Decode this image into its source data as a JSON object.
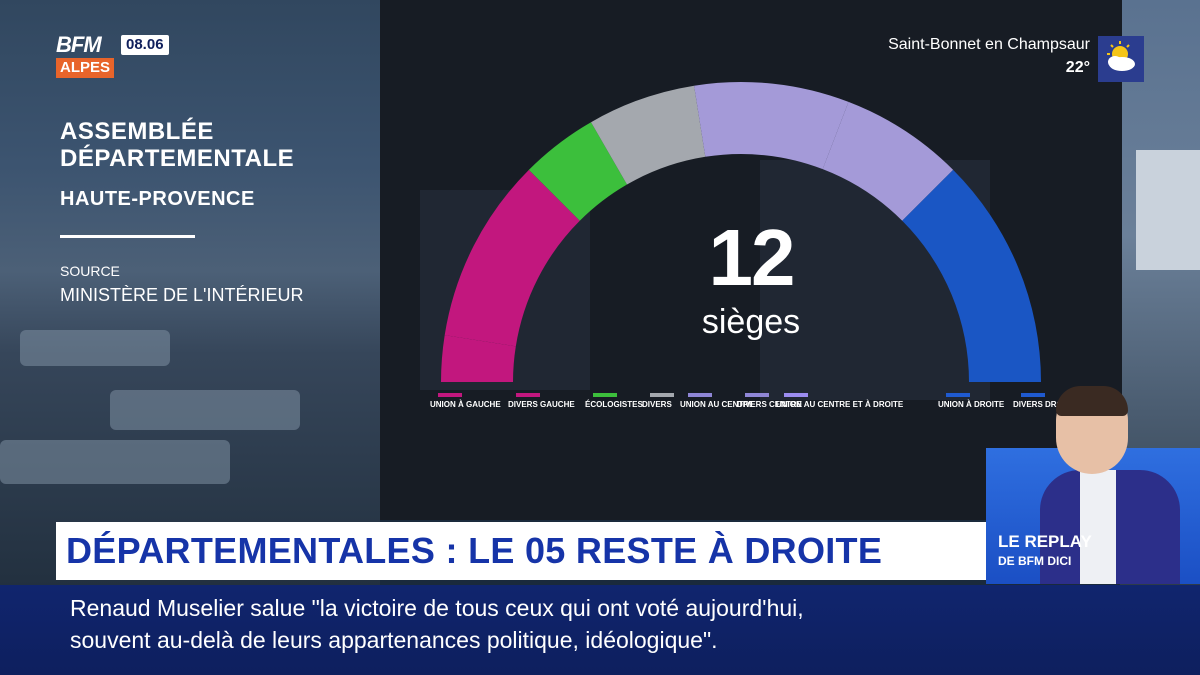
{
  "channel": {
    "logo_top": "BFM",
    "logo_bottom": "ALPES",
    "time": "08.06"
  },
  "weather": {
    "city": "Saint-Bonnet en Champsaur",
    "temperature": "22°",
    "icon": "sun-cloud-icon"
  },
  "info_panel": {
    "title_line1": "ASSEMBLÉE",
    "title_line2": "DÉPARTEMENTALE",
    "subtitle": "HAUTE-PROVENCE",
    "source_label": "SOURCE",
    "source_value": "MINISTÈRE DE L'INTÉRIEUR"
  },
  "chart_data": {
    "type": "pie",
    "variant": "parliament-semicircle",
    "center_value": "12",
    "center_label": "sièges",
    "categories": [
      "UNION À GAUCHE",
      "DIVERS GAUCHE",
      "ÉCOLOGISTES",
      "DIVERS",
      "UNION AU CENTRE",
      "DIVERS CENTRE",
      "UNION AU CENTRE ET À DROITE",
      "UNION À DROITE",
      "DIVERS DROITE"
    ],
    "values": [
      0.6,
      2.4,
      1.0,
      1.4,
      2.0,
      1.6,
      0,
      3.0,
      0
    ],
    "colors": [
      "#c2177e",
      "#c2177e",
      "#3cbf3c",
      "#a4a8ae",
      "#a49ad8",
      "#a49ad8",
      "#9b8cf0",
      "#1a56c4",
      "#1a56c4"
    ],
    "legend_colors": [
      "#c2177e",
      "#c2177e",
      "#3cbf3c",
      "#a4a8ae",
      "#8f86d6",
      "#8f86d6",
      "#9b8cf0",
      "#1f5ad0",
      "#1f5ad0"
    ]
  },
  "legend_items": [
    {
      "label": "UNION À GAUCHE"
    },
    {
      "label": "DIVERS GAUCHE"
    },
    {
      "label": "ÉCOLOGISTES"
    },
    {
      "label": "DIVERS"
    },
    {
      "label": "UNION AU CENTRE"
    },
    {
      "label": "DIVERS CENTRE"
    },
    {
      "label": "UNION AU CENTRE ET À DROITE"
    },
    {
      "label": "UNION À DROITE"
    },
    {
      "label": "DIVERS DROITE"
    }
  ],
  "headline": "DÉPARTEMENTALES : LE 05 RESTE À DROITE",
  "ticker": {
    "line1": "Renaud Muselier salue \"la victoire de tous ceux qui ont voté aujourd'hui,",
    "line2": "souvent au-delà de leurs appartenances politique, idéologique\"."
  },
  "replay": {
    "title": "LE REPLAY",
    "subtitle": "DE BFM DICI"
  }
}
